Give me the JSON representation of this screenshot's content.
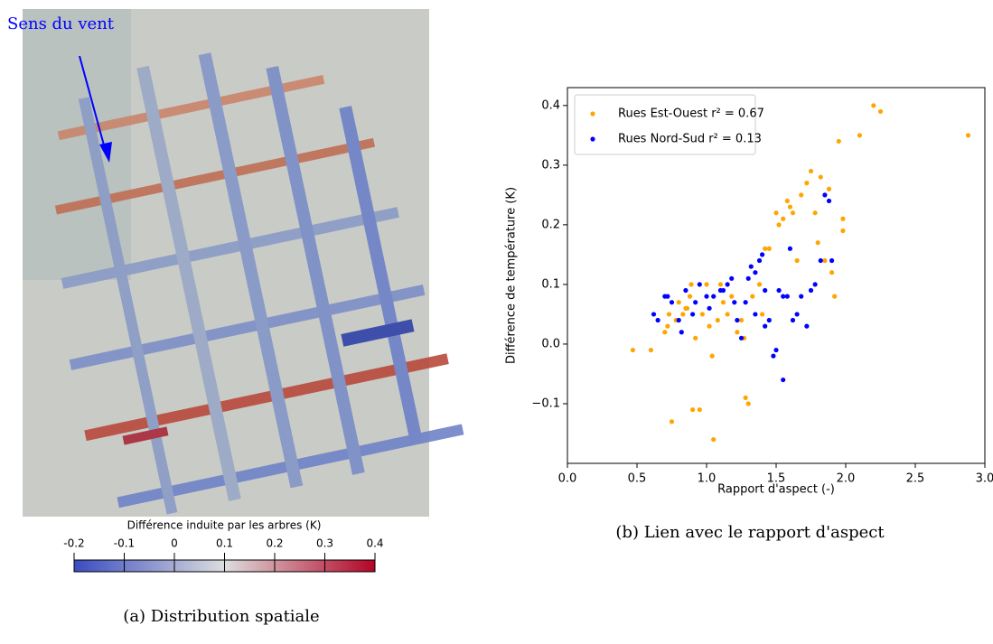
{
  "chart_data": [
    {
      "type": "map",
      "annotation": "Sens du vent",
      "colorbar_label": "Différence induite par les arbres (K)",
      "colorbar_lim": [
        -0.2,
        0.4
      ],
      "colorbar_ticks": [
        -0.2,
        -0.1,
        0,
        0.1,
        0.2,
        0.3,
        0.4
      ],
      "caption": "(a) Distribution spatiale"
    },
    {
      "type": "scatter",
      "xlabel": "Rapport d'aspect (-)",
      "ylabel": "Différence de température (K)",
      "caption": "(b) Lien avec le rapport d'aspect",
      "xlim": [
        0,
        3
      ],
      "ylim": [
        -0.2,
        0.43
      ],
      "xticks": [
        {
          "value": 0,
          "label": "0.0"
        },
        0.5,
        {
          "value": 1,
          "label": "1.0"
        },
        1.5,
        {
          "value": 2,
          "label": "2.0"
        },
        2.5,
        {
          "value": 3,
          "label": "3.0"
        }
      ],
      "yticks": [
        {
          "value": -0.1,
          "label": "−0.1"
        },
        {
          "value": 0,
          "label": "0.0"
        },
        0.1,
        0.2,
        0.3,
        0.4
      ],
      "legend": "upper left",
      "series": [
        {
          "name": "Rues Est-Ouest r² = 0.67",
          "color": "orange",
          "x": [
            0.47,
            0.6,
            0.7,
            0.72,
            0.75,
            0.78,
            0.8,
            0.83,
            0.85,
            0.88,
            0.89,
            0.9,
            0.92,
            0.95,
            0.97,
            1.0,
            1.02,
            1.04,
            1.05,
            1.08,
            1.1,
            1.15,
            1.18,
            1.22,
            1.27,
            1.28,
            1.3,
            1.33,
            1.38,
            1.42,
            1.45,
            1.5,
            1.52,
            1.55,
            1.58,
            1.6,
            1.62,
            1.65,
            1.68,
            1.72,
            1.75,
            1.78,
            1.8,
            1.82,
            1.85,
            1.88,
            1.9,
            1.92,
            1.95,
            1.98,
            1.98,
            2.1,
            2.2,
            2.25,
            2.88,
            0.73,
            0.86,
            1.12,
            1.4,
            1.25
          ],
          "y": [
            -0.01,
            -0.01,
            0.02,
            0.03,
            -0.13,
            0.04,
            0.07,
            0.05,
            0.06,
            0.08,
            0.1,
            -0.11,
            0.01,
            -0.11,
            0.05,
            0.1,
            0.03,
            -0.02,
            -0.16,
            0.04,
            0.1,
            0.05,
            0.08,
            0.02,
            0.01,
            -0.09,
            -0.1,
            0.08,
            0.1,
            0.16,
            0.16,
            0.22,
            0.2,
            0.21,
            0.24,
            0.23,
            0.22,
            0.14,
            0.25,
            0.27,
            0.29,
            0.22,
            0.17,
            0.28,
            0.14,
            0.26,
            0.12,
            0.08,
            0.34,
            0.21,
            0.19,
            0.35,
            0.4,
            0.39,
            0.35,
            0.05,
            0.06,
            0.07,
            0.05,
            0.04
          ]
        },
        {
          "name": "Rues Nord-Sud r² = 0.13",
          "color": "#0000ff",
          "x": [
            0.62,
            0.65,
            0.7,
            0.72,
            0.75,
            0.8,
            0.82,
            0.85,
            0.9,
            0.92,
            0.95,
            1.0,
            1.02,
            1.05,
            1.1,
            1.12,
            1.15,
            1.18,
            1.2,
            1.22,
            1.25,
            1.28,
            1.3,
            1.32,
            1.35,
            1.38,
            1.4,
            1.42,
            1.45,
            1.48,
            1.5,
            1.52,
            1.55,
            1.58,
            1.6,
            1.62,
            1.65,
            1.68,
            1.72,
            1.75,
            1.78,
            1.82,
            1.85,
            1.88,
            1.9,
            1.42,
            1.35,
            1.55
          ],
          "y": [
            0.05,
            0.04,
            0.08,
            0.08,
            0.07,
            0.04,
            0.02,
            0.09,
            0.05,
            0.07,
            0.1,
            0.08,
            0.06,
            0.08,
            0.09,
            0.09,
            0.1,
            0.11,
            0.07,
            0.04,
            0.01,
            0.07,
            0.11,
            0.13,
            0.05,
            0.14,
            0.15,
            0.09,
            0.04,
            -0.02,
            -0.01,
            0.09,
            -0.06,
            0.08,
            0.16,
            0.04,
            0.05,
            0.08,
            0.03,
            0.09,
            0.1,
            0.14,
            0.25,
            0.24,
            0.14,
            0.03,
            0.12,
            0.08
          ]
        }
      ]
    }
  ]
}
